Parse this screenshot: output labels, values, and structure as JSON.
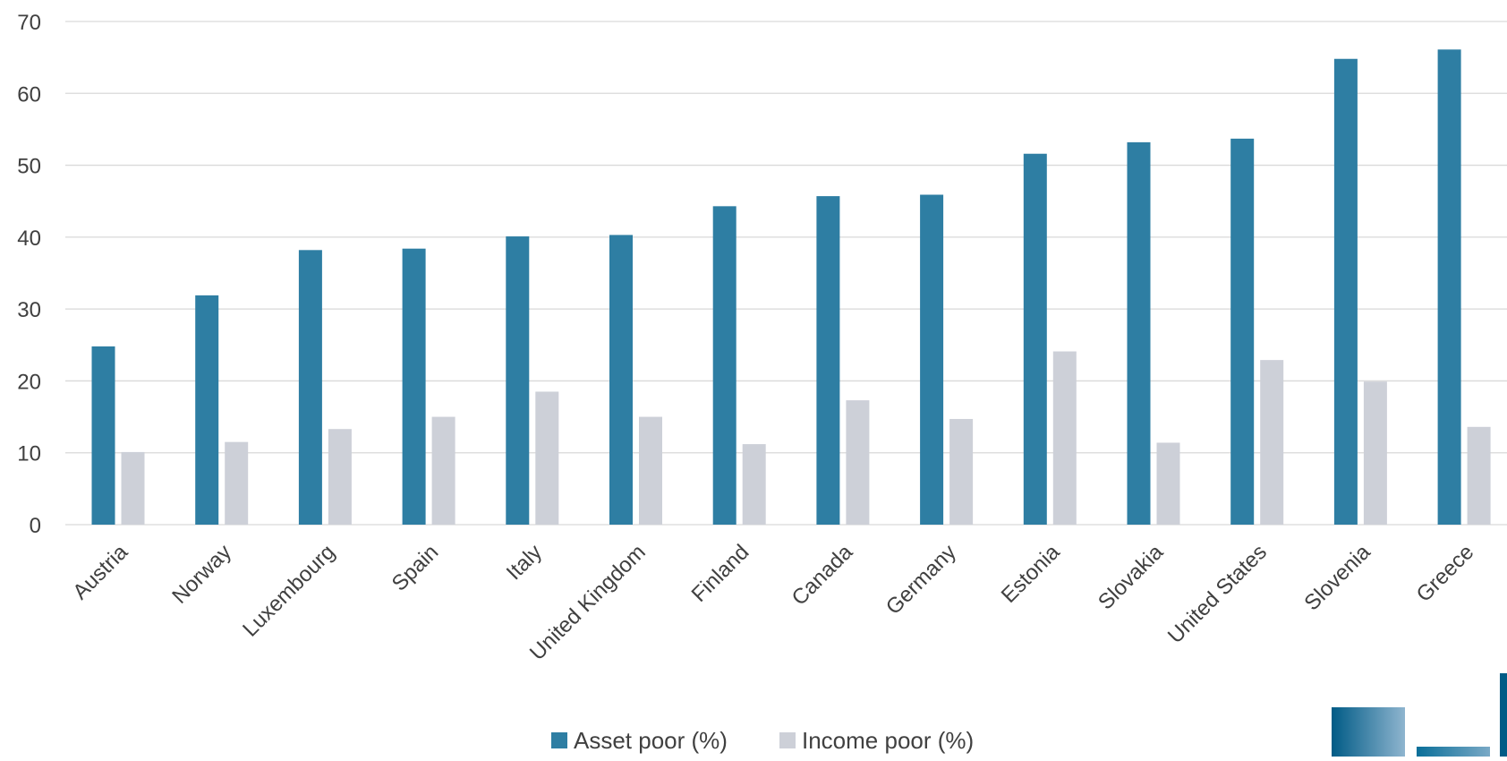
{
  "chart_data": {
    "type": "bar",
    "categories": [
      "Austria",
      "Norway",
      "Luxembourg",
      "Spain",
      "Italy",
      "United Kingdom",
      "Finland",
      "Canada",
      "Germany",
      "Estonia",
      "Slovakia",
      "United States",
      "Slovenia",
      "Greece"
    ],
    "series": [
      {
        "name": "Asset poor (%)",
        "values": [
          24.8,
          31.9,
          38.2,
          38.4,
          40.1,
          40.3,
          44.3,
          45.7,
          45.9,
          51.6,
          53.2,
          53.7,
          64.8,
          66.1
        ],
        "color": "#2e7ea3"
      },
      {
        "name": "Income poor (%)",
        "values": [
          10.1,
          11.5,
          13.3,
          15.0,
          18.5,
          15.0,
          11.2,
          17.3,
          14.7,
          24.1,
          11.4,
          22.9,
          19.9,
          13.6
        ],
        "color": "#cdd0d8"
      }
    ],
    "yticks": [
      0,
      10,
      20,
      30,
      40,
      50,
      60,
      70
    ],
    "ylim": [
      0,
      70
    ],
    "grid": true,
    "legend_position": "bottom"
  },
  "logo": {
    "colors": [
      "#005b86",
      "#7aa9c6",
      "#0a6f99"
    ]
  }
}
